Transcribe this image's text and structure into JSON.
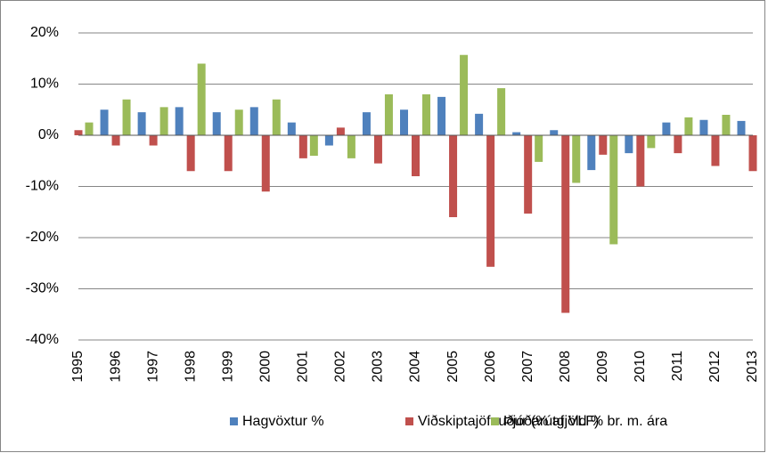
{
  "chart_data": {
    "type": "bar",
    "categories": [
      "1995",
      "1996",
      "1997",
      "1998",
      "1999",
      "2000",
      "2001",
      "2002",
      "2003",
      "2004",
      "2005",
      "2006",
      "2007",
      "2008",
      "2009",
      "2010",
      "2011",
      "2012",
      "2013"
    ],
    "series": [
      {
        "name": "Hagvöxtur %",
        "color": "#4f81bd",
        "values": [
          null,
          5,
          4.5,
          5.5,
          4.5,
          5.5,
          2.5,
          -2,
          4.5,
          5,
          7.5,
          4.2,
          0.6,
          1,
          -6.8,
          -3.5,
          2.5,
          3,
          2.8
        ]
      },
      {
        "name": "Viðskiptajöfnuður (% af VLF)",
        "color": "#c0504d",
        "values": [
          1,
          -2,
          -2,
          -7,
          -7,
          -11,
          -4.5,
          1.5,
          -5.5,
          -8,
          -16,
          -25.7,
          -15.3,
          -34.7,
          -3.8,
          -10,
          -3.5,
          -6,
          -7
        ]
      },
      {
        "name": "Þjóðarútgjöld % br. m. ára",
        "color": "#9bbb59",
        "values": [
          2.5,
          7,
          5.5,
          14,
          5,
          7,
          -4,
          -4.5,
          8,
          8,
          15.7,
          9.2,
          -5.2,
          -9.3,
          -21.3,
          -2.5,
          3.5,
          4,
          null
        ]
      }
    ],
    "ylim": [
      -40,
      20
    ],
    "yticks": [
      {
        "value": -40,
        "label": "-40%"
      },
      {
        "value": -30,
        "label": "-30%"
      },
      {
        "value": -20,
        "label": "-20%"
      },
      {
        "value": -10,
        "label": "-10%"
      },
      {
        "value": 0,
        "label": "0%"
      },
      {
        "value": 10,
        "label": "10%"
      },
      {
        "value": 20,
        "label": "20%"
      }
    ],
    "grid": true,
    "legend": "bottom"
  }
}
